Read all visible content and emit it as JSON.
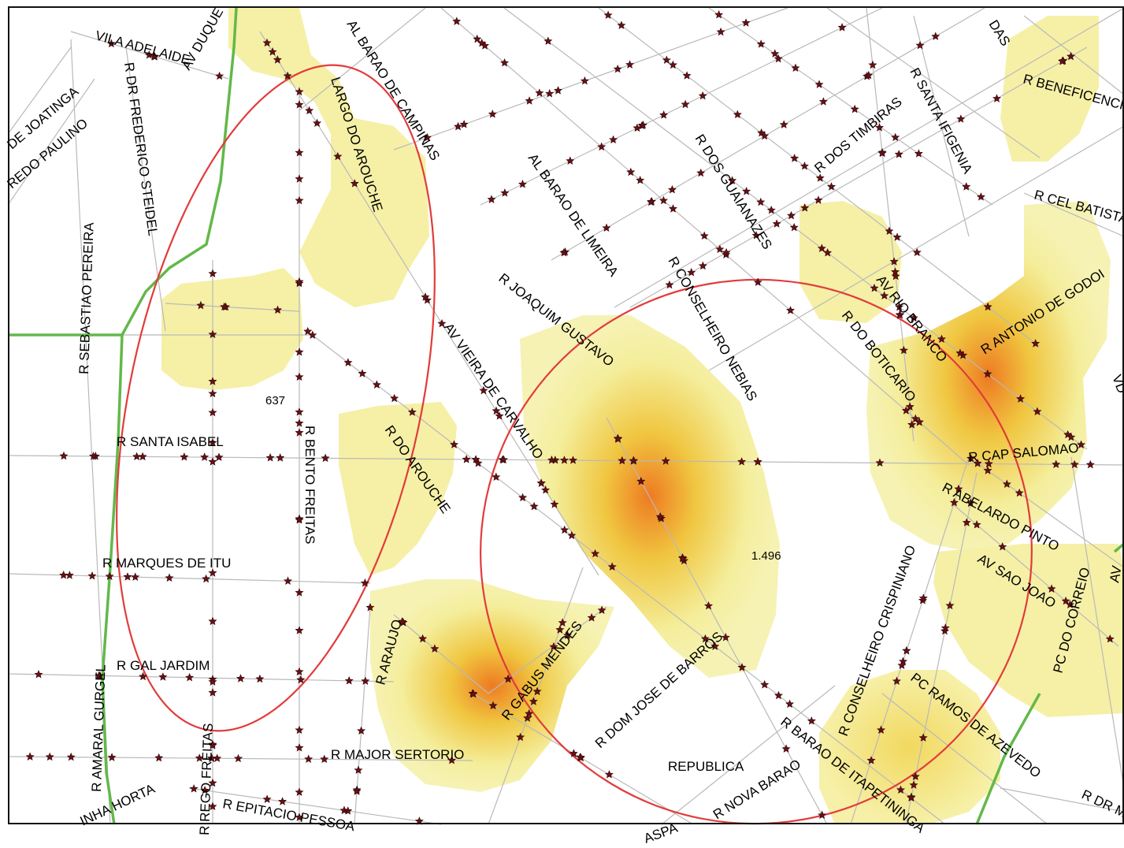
{
  "colors": {
    "street": "#b9b9b9",
    "metro_line": "#63b84a",
    "ellipse": "#e23b3b",
    "heat_low": "#f4ee9c",
    "heat_mid": "#f0c640",
    "heat_high": "#ee7a22",
    "marker": "#6a0f14"
  },
  "labels": {
    "vila_adelaide": "VILA ADELAIDE",
    "av_duque": "AV DUQUE",
    "de_joatinga": "DE JOATINGA",
    "redo_paulino": "REDO PAULINO",
    "r_dr_frederico_steidel": "R DR FREDERICO STEIDEL",
    "r_sebastiao_pereira": "R SEBASTIAO PEREIRA",
    "al_barao_de_campinas": "AL BARAO DE CAMPINAS",
    "largo_do_arouche": "LARGO DO AROUCHE",
    "al_barao_de_limeira": "AL BARAO DE LIMEIRA",
    "r_dos_guaianazes": "R DOS GUAIANAZES",
    "r_dos_timbiras": "R DOS TIMBIRAS",
    "r_santa_ifigenia": "R SANTA IFIGENIA",
    "r_beneficencia": "R BENEFICENCIA",
    "das": "DAS",
    "r_cel_batista": "R CEL BATISTA",
    "r_antonio_de_godoi": "R ANTONIO DE GODOI",
    "av_rio_branco": "AV RIO BRANCO",
    "r_do_boticario": "R DO BOTICARIO",
    "r_conselheiro_nebias": "R CONSELHEIRO NEBIAS",
    "r_joaquim_gustavo": "R JOAQUIM GUSTAVO",
    "av_vieira_de_carvalho": "AV VIEIRA DE CARVALHO",
    "r_do_arouche": "R DO AROUCHE",
    "r_santa_isabel": "R SANTA ISABEL",
    "r_bento_freitas": "R BENTO FREITAS",
    "num_637": "637",
    "num_1496": "1.496",
    "r_marques_de_itu": "R MARQUES DE ITU",
    "r_gal_jardim": "R GAL JARDIM",
    "r_amaral_gurgel": "R AMARAL GURGEL",
    "r_rego_freitas": "R REGO FREITAS",
    "r_epitacio_pessoa": "R EPITACIO PESSOA",
    "inha_horta": "INHA HORTA",
    "r_major_sertorio": "R MAJOR SERTORIO",
    "r_araujo": "R ARAUJO",
    "r_gabus_mendes": "R GABUS MENDES",
    "r_dom_jose_de_barros": "R DOM JOSE DE BARROS",
    "republica": "REPUBLICA",
    "r_nova_barao": "R NOVA BARAO",
    "aspa": "ASPA",
    "r_barao_de_itapetininga": "R BARAO DE ITAPETININGA",
    "pc_ramos_de_azevedo": "PC RAMOS DE AZEVEDO",
    "r_conselheiro_crispiniano": "R CONSELHEIRO CRISPINIANO",
    "r_cap_salomao": "R CAP SALOMAO",
    "r_abelardo_pinto": "R ABELARDO PINTO",
    "av_sao_joao": "AV SAO JOAO",
    "pc_do_correio": "PC DO CORREIO",
    "r_dr_m": "R DR M",
    "av": "AV",
    "vd": "VD"
  }
}
